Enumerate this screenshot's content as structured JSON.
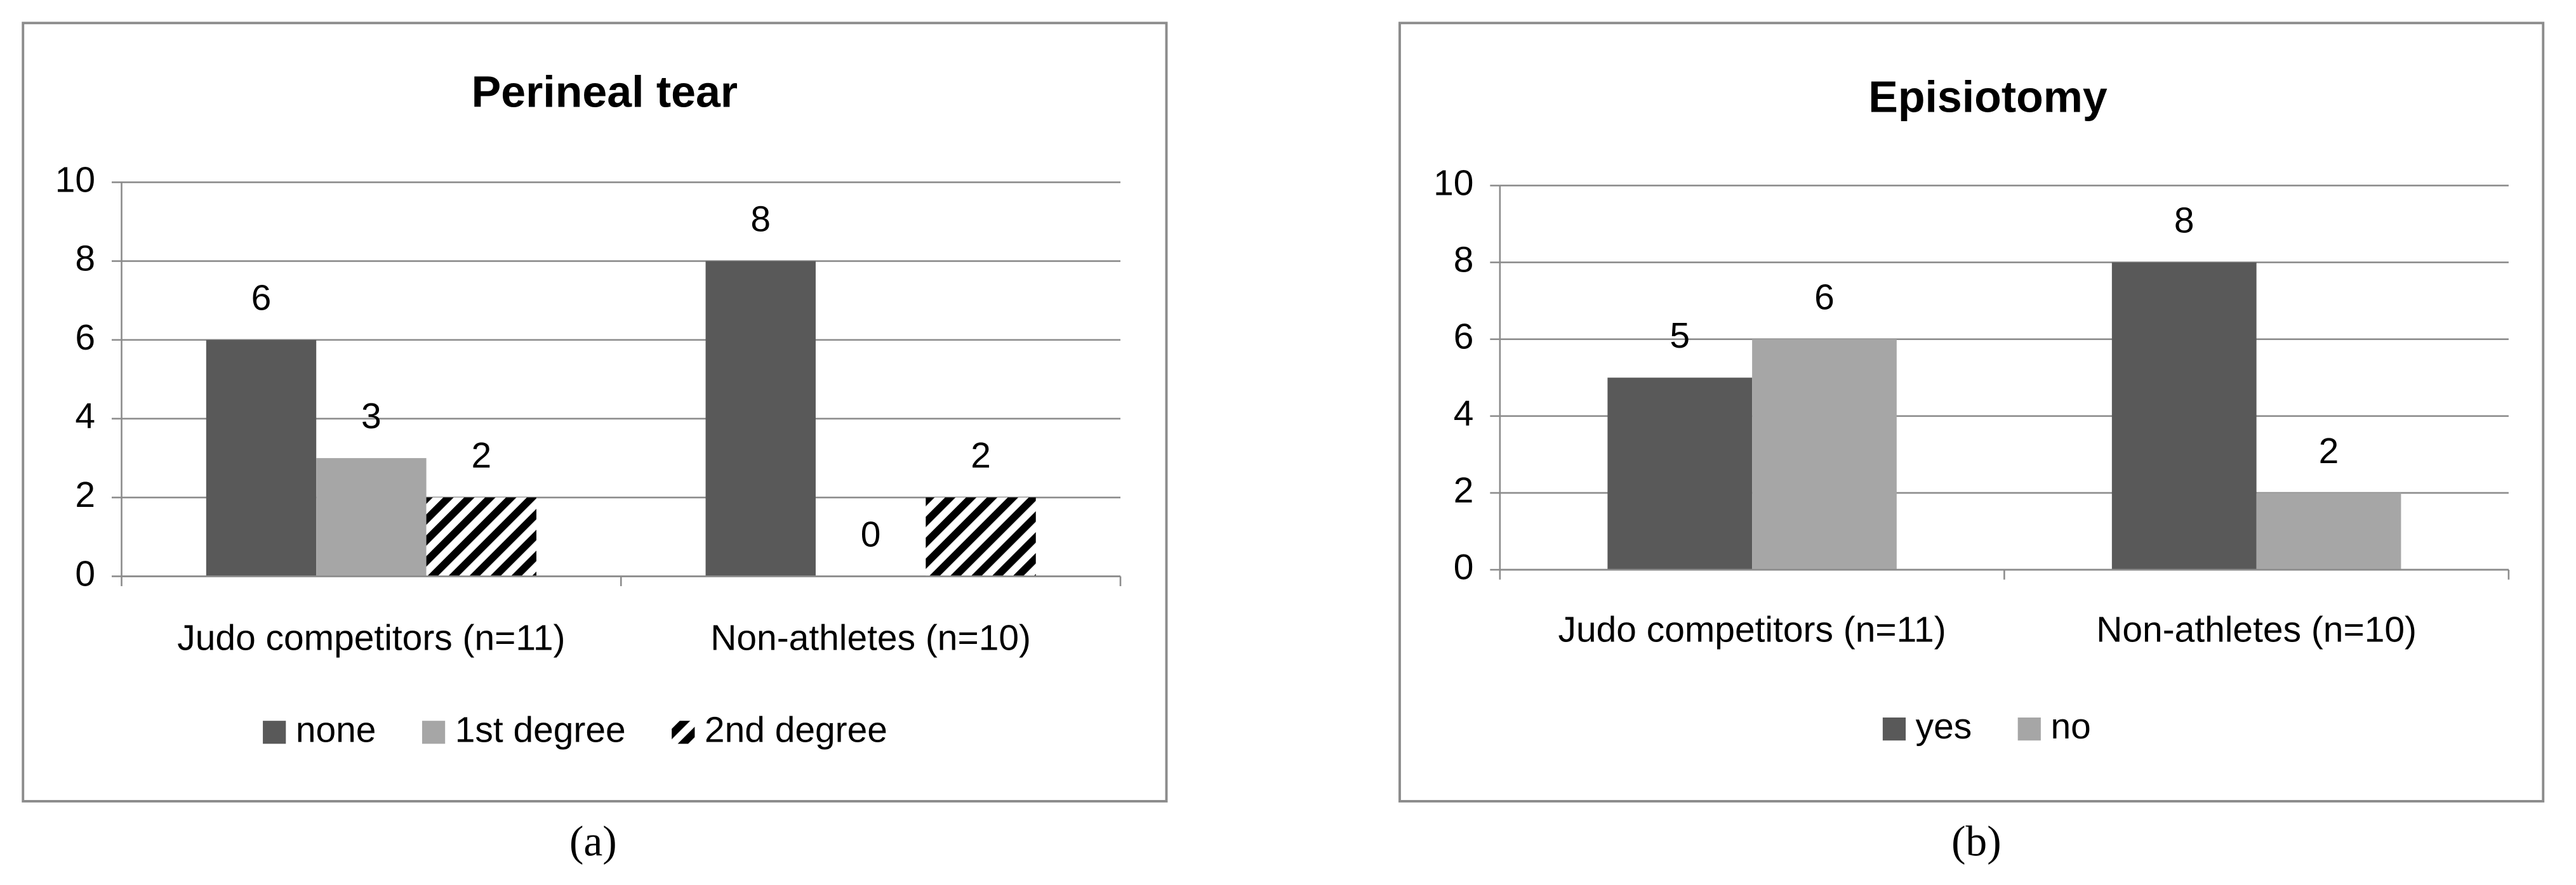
{
  "chart_data": [
    {
      "type": "bar",
      "title": "Perineal tear",
      "panel_label": "(a)",
      "categories": [
        "Judo competitors (n=11)",
        "Non-athletes (n=10)"
      ],
      "series": [
        {
          "name": "none",
          "color": "#595959",
          "values": [
            6,
            8
          ]
        },
        {
          "name": "1st degree",
          "color": "#a6a6a6",
          "values": [
            3,
            0
          ]
        },
        {
          "name": "2nd degree",
          "color": "#000000",
          "pattern": "hatch",
          "values": [
            2,
            2
          ]
        }
      ],
      "ylim": [
        0,
        10
      ],
      "yticks": [
        0,
        2,
        4,
        6,
        8,
        10
      ],
      "grid": true,
      "legend": "bottom"
    },
    {
      "type": "bar",
      "title": "Episiotomy",
      "panel_label": "(b)",
      "categories": [
        "Judo competitors (n=11)",
        "Non-athletes (n=10)"
      ],
      "series": [
        {
          "name": "yes",
          "color": "#595959",
          "values": [
            5,
            8
          ]
        },
        {
          "name": "no",
          "color": "#a6a6a6",
          "values": [
            6,
            2
          ]
        }
      ],
      "ylim": [
        0,
        10
      ],
      "yticks": [
        0,
        2,
        4,
        6,
        8,
        10
      ],
      "grid": true,
      "legend": "bottom"
    }
  ]
}
